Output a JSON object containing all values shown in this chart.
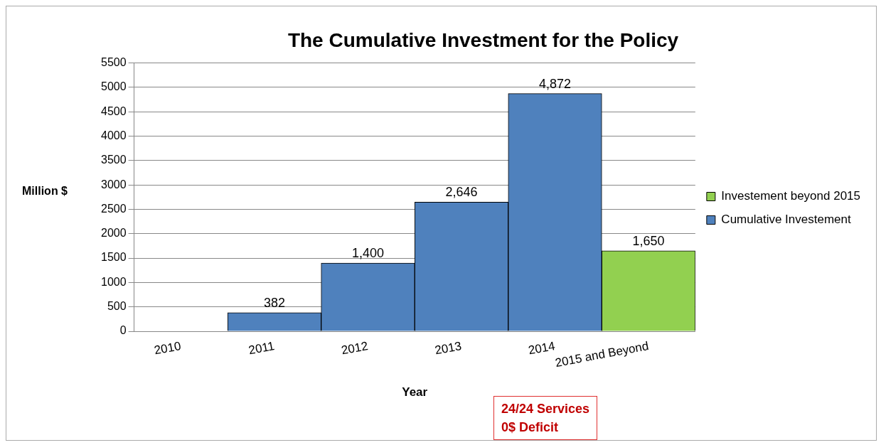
{
  "chart_data": {
    "type": "bar",
    "title": "The Cumulative Investment for the Policy",
    "xlabel": "Year",
    "ylabel": "Million $",
    "categories": [
      "2010",
      "2011",
      "2012",
      "2013",
      "2014",
      "2015 and Beyond"
    ],
    "series": [
      {
        "name": "Investement beyond 2015",
        "color": "#92d050",
        "values": [
          null,
          null,
          null,
          null,
          null,
          1650
        ],
        "value_labels": [
          null,
          null,
          null,
          null,
          null,
          "1,650"
        ]
      },
      {
        "name": "Cumulative Investement",
        "color": "#4f81bd",
        "values": [
          null,
          382,
          1400,
          2646,
          4872,
          null
        ],
        "value_labels": [
          null,
          "382",
          "1,400",
          "2,646",
          "4,872",
          null
        ]
      }
    ],
    "ylim": [
      0,
      5500
    ],
    "yticks": [
      0,
      500,
      1000,
      1500,
      2000,
      2500,
      3000,
      3500,
      4000,
      4500,
      5000,
      5500
    ],
    "grid": "y",
    "legend": "right",
    "annotations": [
      "24/24 Services\n0$ Deficit"
    ]
  }
}
